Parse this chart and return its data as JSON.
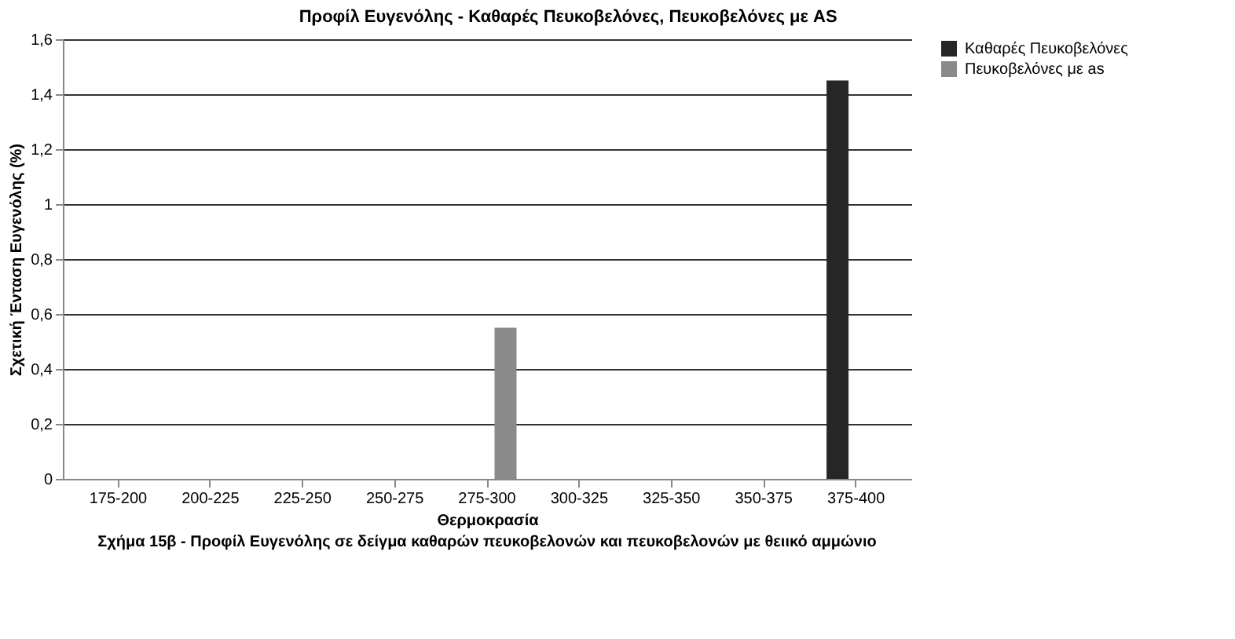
{
  "chart_data": {
    "type": "bar",
    "title": "Προφίλ Ευγενόλης - Καθαρές Πευκοβελόνες, Πευκοβελόνες με AS",
    "xlabel": "Θερμοκρασία",
    "ylabel": "Σχετική Ένταση Ευγενόλης (%)",
    "annotations": [
      "Σχήμα 15β - Προφίλ Ευγενόλης σε δείγμα καθαρών πευκοβελονών και πευκοβελονών με θειικό αμμώνιο"
    ],
    "categories": [
      "175-200",
      "200-225",
      "225-250",
      "250-275",
      "275-300",
      "300-325",
      "325-350",
      "350-375",
      "375-400"
    ],
    "series": [
      {
        "name": "Καθαρές Πευκοβελόνες",
        "color": "#262626",
        "values": [
          0,
          null,
          0,
          0,
          0,
          0,
          null,
          null,
          1.45
        ]
      },
      {
        "name": "Πευκοβελόνες με as",
        "color": "#8a8a8a",
        "values": [
          null,
          null,
          null,
          null,
          0.55,
          null,
          null,
          null,
          null
        ]
      }
    ],
    "ylim": [
      0,
      1.6
    ],
    "yticks": [
      0,
      {
        "value": 0.2,
        "label": "0,2"
      },
      {
        "value": 0.4,
        "label": "0,4"
      },
      {
        "value": 0.6,
        "label": "0,6"
      },
      {
        "value": 0.8,
        "label": "0,8"
      },
      1,
      {
        "value": 1.2,
        "label": "1,2"
      },
      {
        "value": 1.4,
        "label": "1,4"
      },
      {
        "value": 1.6,
        "label": "1,6"
      }
    ],
    "grid": "y",
    "legend": "right"
  }
}
